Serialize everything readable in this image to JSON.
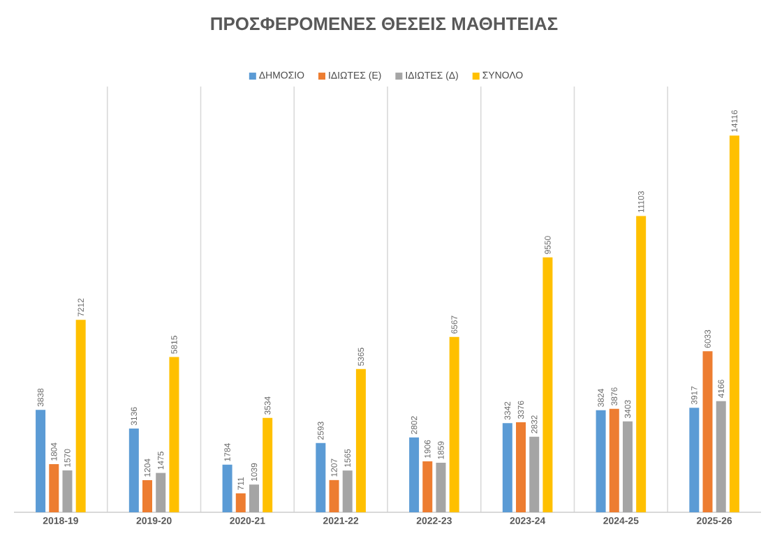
{
  "chart_data": {
    "type": "bar",
    "title": "ΠΡΟΣΦΕΡΟΜΕΝΕΣ ΘΕΣΕΙΣ ΜΑΘΗΤΕΙΑΣ",
    "categories": [
      "2018-19",
      "2019-20",
      "2020-21",
      "2021-22",
      "2022-23",
      "2023-24",
      "2024-25",
      "2025-26"
    ],
    "series": [
      {
        "name": "ΔΗΜΟΣΙΟ",
        "color": "#5b9bd5",
        "values": [
          3838,
          3136,
          1784,
          2593,
          2802,
          3342,
          3824,
          3917
        ]
      },
      {
        "name": "ΙΔΙΩΤΕΣ (Ε)",
        "color": "#ed7d31",
        "values": [
          1804,
          1204,
          711,
          1207,
          1906,
          3376,
          3876,
          6033
        ]
      },
      {
        "name": "ΙΔΙΩΤΕΣ (Δ)",
        "color": "#a5a5a5",
        "values": [
          1570,
          1475,
          1039,
          1565,
          1859,
          2832,
          3403,
          4166
        ]
      },
      {
        "name": "ΣΥΝΟΛΟ",
        "color": "#ffc000",
        "values": [
          7212,
          5815,
          3534,
          5365,
          6567,
          9550,
          11103,
          14116
        ]
      }
    ],
    "data_labels": true,
    "legend": "top",
    "grid": "x"
  }
}
